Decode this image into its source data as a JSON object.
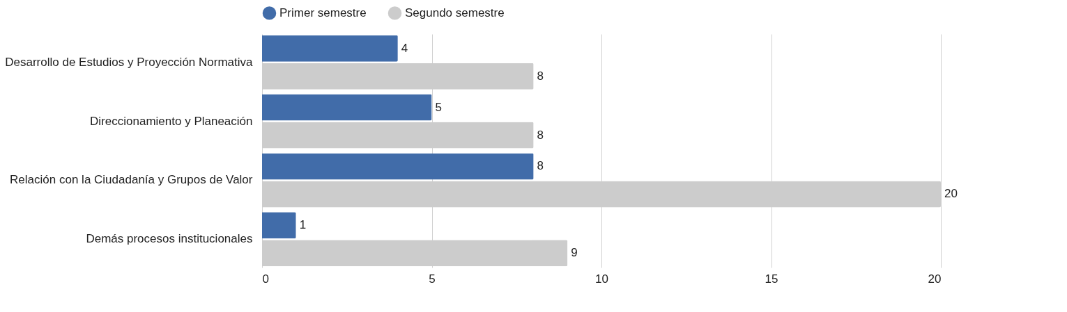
{
  "chart_data": {
    "type": "bar",
    "orientation": "horizontal",
    "categories": [
      "Desarrollo de Estudios y Proyección Normativa",
      "Direccionamiento y Planeación",
      "Relación con la Ciudadanía y Grupos de Valor",
      "Demás procesos institucionales"
    ],
    "series": [
      {
        "name": "Primer semestre",
        "color": "#416ca9",
        "values": [
          4,
          5,
          8,
          1
        ]
      },
      {
        "name": "Segundo semestre",
        "color": "#cccccc",
        "values": [
          8,
          8,
          20,
          9
        ]
      }
    ],
    "xlim": [
      0,
      20
    ],
    "xticks": [
      0,
      5,
      10,
      15,
      20
    ],
    "grid": "x",
    "legend": "top",
    "data_labels": true
  }
}
